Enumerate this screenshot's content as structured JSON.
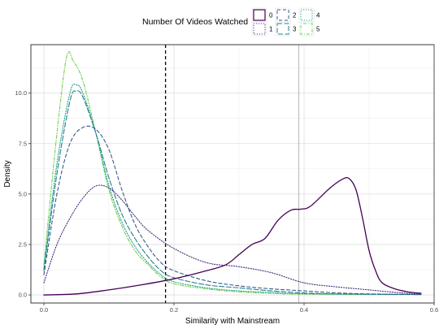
{
  "chart_data": {
    "type": "line",
    "xlabel": "Similarity with Mainstream",
    "ylabel": "Density",
    "xlim": [
      -0.02,
      0.6
    ],
    "ylim": [
      -0.4,
      12.4
    ],
    "x_ticks": [
      0.0,
      0.2,
      0.4,
      0.6
    ],
    "x_tick_labels": [
      "0.0",
      "0.2",
      "0.4",
      "0.6"
    ],
    "y_ticks": [
      0.0,
      2.5,
      5.0,
      7.5,
      10.0
    ],
    "y_tick_labels": [
      "0.0",
      "2.5",
      "5.0",
      "7.5",
      "10.0"
    ],
    "grid": true,
    "legend": {
      "title": "Number Of Videos Watched",
      "placement": "top",
      "entries": [
        "0",
        "1",
        "2",
        "3",
        "4",
        "5"
      ]
    },
    "vlines": [
      {
        "x": 0.187,
        "style": "dashed",
        "color": "#000000"
      },
      {
        "x": 0.392,
        "style": "solid",
        "color": "#b3b3b3"
      }
    ],
    "series": [
      {
        "name": "0",
        "color": "#440154",
        "dash": "solid",
        "points": [
          [
            0.0,
            0.0
          ],
          [
            0.05,
            0.05
          ],
          [
            0.1,
            0.25
          ],
          [
            0.15,
            0.5
          ],
          [
            0.2,
            0.8
          ],
          [
            0.25,
            1.2
          ],
          [
            0.28,
            1.5
          ],
          [
            0.3,
            2.0
          ],
          [
            0.32,
            2.5
          ],
          [
            0.34,
            2.8
          ],
          [
            0.36,
            3.7
          ],
          [
            0.38,
            4.2
          ],
          [
            0.395,
            4.25
          ],
          [
            0.41,
            4.4
          ],
          [
            0.44,
            5.3
          ],
          [
            0.46,
            5.75
          ],
          [
            0.47,
            5.75
          ],
          [
            0.48,
            5.2
          ],
          [
            0.49,
            3.8
          ],
          [
            0.5,
            2.2
          ],
          [
            0.51,
            1.2
          ],
          [
            0.52,
            0.6
          ],
          [
            0.54,
            0.3
          ],
          [
            0.56,
            0.15
          ],
          [
            0.58,
            0.08
          ]
        ]
      },
      {
        "name": "1",
        "color": "#46337e",
        "dash": "dotted",
        "points": [
          [
            0.0,
            0.6
          ],
          [
            0.02,
            2.5
          ],
          [
            0.04,
            3.8
          ],
          [
            0.06,
            4.8
          ],
          [
            0.08,
            5.4
          ],
          [
            0.1,
            5.3
          ],
          [
            0.12,
            4.7
          ],
          [
            0.14,
            3.9
          ],
          [
            0.16,
            3.2
          ],
          [
            0.2,
            2.3
          ],
          [
            0.25,
            1.6
          ],
          [
            0.3,
            1.4
          ],
          [
            0.35,
            1.1
          ],
          [
            0.4,
            0.6
          ],
          [
            0.45,
            0.4
          ],
          [
            0.5,
            0.25
          ],
          [
            0.55,
            0.1
          ],
          [
            0.58,
            0.05
          ]
        ]
      },
      {
        "name": "2",
        "color": "#365c8d",
        "dash": "dashed",
        "points": [
          [
            0.0,
            1.0
          ],
          [
            0.02,
            5.0
          ],
          [
            0.04,
            7.5
          ],
          [
            0.06,
            8.3
          ],
          [
            0.08,
            8.2
          ],
          [
            0.1,
            7.2
          ],
          [
            0.12,
            5.2
          ],
          [
            0.14,
            3.5
          ],
          [
            0.16,
            2.4
          ],
          [
            0.18,
            1.6
          ],
          [
            0.2,
            1.2
          ],
          [
            0.25,
            0.7
          ],
          [
            0.3,
            0.45
          ],
          [
            0.35,
            0.3
          ],
          [
            0.4,
            0.2
          ],
          [
            0.45,
            0.1
          ],
          [
            0.5,
            0.05
          ],
          [
            0.58,
            0.02
          ]
        ]
      },
      {
        "name": "3",
        "color": "#277f8e",
        "dash": "longdash",
        "points": [
          [
            0.0,
            1.2
          ],
          [
            0.02,
            6.0
          ],
          [
            0.04,
            9.6
          ],
          [
            0.05,
            10.1
          ],
          [
            0.06,
            9.8
          ],
          [
            0.08,
            8.0
          ],
          [
            0.1,
            5.8
          ],
          [
            0.12,
            4.0
          ],
          [
            0.14,
            2.8
          ],
          [
            0.16,
            1.9
          ],
          [
            0.18,
            1.2
          ],
          [
            0.2,
            0.85
          ],
          [
            0.25,
            0.5
          ],
          [
            0.3,
            0.35
          ],
          [
            0.35,
            0.2
          ],
          [
            0.4,
            0.1
          ],
          [
            0.45,
            0.05
          ],
          [
            0.58,
            0.02
          ]
        ]
      },
      {
        "name": "4",
        "color": "#1fa187",
        "dash": "dotted",
        "points": [
          [
            0.0,
            1.3
          ],
          [
            0.02,
            6.5
          ],
          [
            0.04,
            10.0
          ],
          [
            0.05,
            10.4
          ],
          [
            0.06,
            10.0
          ],
          [
            0.08,
            8.0
          ],
          [
            0.1,
            5.4
          ],
          [
            0.12,
            3.6
          ],
          [
            0.14,
            2.4
          ],
          [
            0.16,
            1.6
          ],
          [
            0.18,
            1.0
          ],
          [
            0.2,
            0.65
          ],
          [
            0.25,
            0.35
          ],
          [
            0.3,
            0.2
          ],
          [
            0.35,
            0.12
          ],
          [
            0.4,
            0.06
          ],
          [
            0.58,
            0.02
          ]
        ]
      },
      {
        "name": "5",
        "color": "#73d055",
        "dash": "dotdash",
        "points": [
          [
            0.0,
            1.5
          ],
          [
            0.02,
            8.0
          ],
          [
            0.035,
            11.8
          ],
          [
            0.045,
            11.6
          ],
          [
            0.06,
            10.6
          ],
          [
            0.08,
            8.0
          ],
          [
            0.1,
            5.2
          ],
          [
            0.12,
            3.4
          ],
          [
            0.14,
            2.2
          ],
          [
            0.16,
            1.5
          ],
          [
            0.18,
            0.9
          ],
          [
            0.2,
            0.55
          ],
          [
            0.25,
            0.3
          ],
          [
            0.3,
            0.15
          ],
          [
            0.35,
            0.08
          ],
          [
            0.4,
            0.04
          ],
          [
            0.58,
            0.01
          ]
        ]
      }
    ]
  }
}
